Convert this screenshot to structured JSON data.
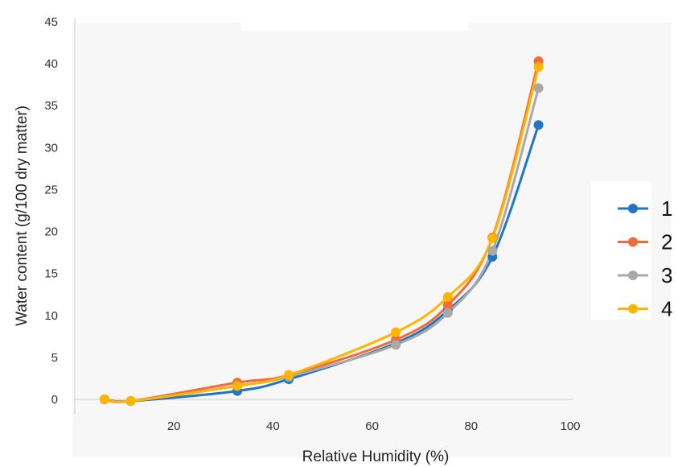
{
  "chart_data": {
    "type": "line",
    "title": "",
    "xlabel": "Relative Humidity (%)",
    "ylabel": "Water content (g/100 dry matter)",
    "xlim": [
      0,
      100
    ],
    "ylim": [
      0,
      45
    ],
    "xticks": [
      20,
      40,
      60,
      80,
      100
    ],
    "yticks": [
      0,
      5,
      10,
      15,
      20,
      25,
      30,
      35,
      40,
      45
    ],
    "grid": false,
    "legend_position": "right",
    "series": [
      {
        "name": "1",
        "color": "#1f77c4",
        "x": [
          6,
          11.3,
          32.8,
          43.2,
          64.8,
          75.3,
          84.3,
          93.6
        ],
        "y": [
          0,
          -0.2,
          1.0,
          2.4,
          6.7,
          10.6,
          17.0,
          32.7
        ]
      },
      {
        "name": "2",
        "color": "#f26b3a",
        "x": [
          6,
          11.3,
          32.8,
          43.2,
          64.8,
          75.3,
          84.3,
          93.6
        ],
        "y": [
          0,
          -0.2,
          2.0,
          2.9,
          7.1,
          11.2,
          19.3,
          40.3
        ]
      },
      {
        "name": "3",
        "color": "#a9a9a9",
        "x": [
          6,
          11.3,
          32.8,
          43.2,
          64.8,
          75.3,
          84.3,
          93.6
        ],
        "y": [
          0,
          -0.2,
          1.6,
          2.7,
          6.5,
          10.3,
          17.7,
          37.1
        ]
      },
      {
        "name": "4",
        "color": "#ffb400",
        "x": [
          6,
          11.3,
          32.8,
          43.2,
          64.8,
          75.3,
          84.3,
          93.6
        ],
        "y": [
          0,
          -0.2,
          1.6,
          2.9,
          8.0,
          12.2,
          19.2,
          39.6
        ]
      }
    ]
  }
}
